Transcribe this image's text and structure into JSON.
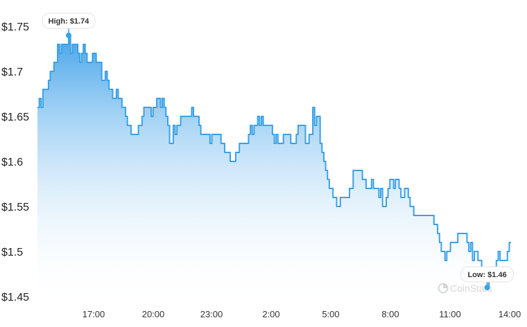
{
  "chart_data": {
    "type": "area",
    "title": "",
    "xlabel": "",
    "ylabel": "",
    "ylim": [
      1.45,
      1.75
    ],
    "y_ticks": [
      "$1.75",
      "$1.7",
      "$1.65",
      "$1.6",
      "$1.55",
      "$1.5",
      "$1.45"
    ],
    "y_tick_values": [
      1.75,
      1.7,
      1.65,
      1.6,
      1.55,
      1.5,
      1.45
    ],
    "x_ticks": [
      "17:00",
      "20:00",
      "23:00",
      "2:00",
      "5:00",
      "8:00",
      "11:00",
      "14:00"
    ],
    "grid": false,
    "line_color": "#3ba0e6",
    "fill_color_top": "#3b9fe8",
    "fill_color_bottom": "#ffffff",
    "high_label": "High: $1.74",
    "low_label": "Low: $1.46",
    "high": 1.74,
    "low": 1.46,
    "watermark": "CoinStats",
    "series": [
      {
        "values": [
          1.66,
          1.67,
          1.66,
          1.68,
          1.68,
          1.68,
          1.69,
          1.7,
          1.7,
          1.71,
          1.71,
          1.73,
          1.72,
          1.73,
          1.73,
          1.73,
          1.73,
          1.74,
          1.72,
          1.73,
          1.73,
          1.73,
          1.72,
          1.71,
          1.72,
          1.73,
          1.72,
          1.71,
          1.71,
          1.71,
          1.72,
          1.72,
          1.71,
          1.71,
          1.71,
          1.69,
          1.69,
          1.7,
          1.69,
          1.68,
          1.68,
          1.67,
          1.67,
          1.68,
          1.67,
          1.67,
          1.66,
          1.66,
          1.65,
          1.64,
          1.64,
          1.63,
          1.63,
          1.63,
          1.63,
          1.64,
          1.64,
          1.65,
          1.66,
          1.66,
          1.66,
          1.66,
          1.65,
          1.66,
          1.66,
          1.67,
          1.67,
          1.66,
          1.67,
          1.66,
          1.65,
          1.64,
          1.62,
          1.62,
          1.64,
          1.63,
          1.64,
          1.64,
          1.65,
          1.65,
          1.65,
          1.65,
          1.65,
          1.65,
          1.66,
          1.65,
          1.65,
          1.65,
          1.64,
          1.63,
          1.63,
          1.63,
          1.63,
          1.63,
          1.62,
          1.63,
          1.63,
          1.63,
          1.63,
          1.63,
          1.62,
          1.62,
          1.61,
          1.61,
          1.61,
          1.6,
          1.6,
          1.6,
          1.61,
          1.61,
          1.62,
          1.62,
          1.62,
          1.62,
          1.62,
          1.63,
          1.64,
          1.63,
          1.64,
          1.64,
          1.65,
          1.64,
          1.65,
          1.64,
          1.64,
          1.64,
          1.64,
          1.64,
          1.63,
          1.62,
          1.63,
          1.62,
          1.62,
          1.62,
          1.63,
          1.63,
          1.63,
          1.63,
          1.62,
          1.62,
          1.62,
          1.63,
          1.64,
          1.64,
          1.64,
          1.64,
          1.62,
          1.62,
          1.63,
          1.63,
          1.66,
          1.64,
          1.65,
          1.65,
          1.62,
          1.61,
          1.6,
          1.59,
          1.58,
          1.57,
          1.57,
          1.56,
          1.56,
          1.55,
          1.55,
          1.56,
          1.56,
          1.56,
          1.56,
          1.56,
          1.57,
          1.57,
          1.59,
          1.59,
          1.59,
          1.59,
          1.59,
          1.58,
          1.58,
          1.57,
          1.57,
          1.57,
          1.58,
          1.57,
          1.57,
          1.57,
          1.56,
          1.57,
          1.55,
          1.55,
          1.56,
          1.57,
          1.58,
          1.58,
          1.57,
          1.58,
          1.58,
          1.57,
          1.56,
          1.56,
          1.57,
          1.57,
          1.56,
          1.55,
          1.55,
          1.54,
          1.54,
          1.54,
          1.54,
          1.54,
          1.54,
          1.54,
          1.54,
          1.54,
          1.54,
          1.54,
          1.53,
          1.53,
          1.52,
          1.51,
          1.5,
          1.5,
          1.49,
          1.5,
          1.5,
          1.51,
          1.51,
          1.51,
          1.51,
          1.52,
          1.52,
          1.52,
          1.52,
          1.52,
          1.51,
          1.5,
          1.51,
          1.49,
          1.5,
          1.5,
          1.49,
          1.49,
          1.48,
          1.48,
          1.47,
          1.46,
          1.47,
          1.48,
          1.48,
          1.48,
          1.49,
          1.5,
          1.49,
          1.49,
          1.49,
          1.49,
          1.5,
          1.51,
          1.51
        ]
      }
    ]
  }
}
